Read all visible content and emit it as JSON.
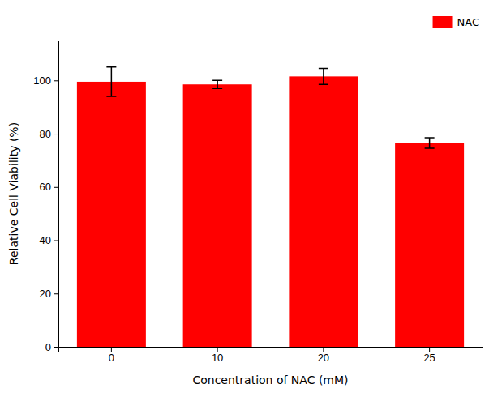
{
  "chart_data": {
    "type": "bar",
    "xlabel": "Concentration of NAC (mM)",
    "ylabel": "Relative Cell Viability (%)",
    "categories": [
      "0",
      "10",
      "20",
      "25"
    ],
    "series": [
      {
        "name": "NAC",
        "color": "#FF0000",
        "values": [
          99.5,
          98.5,
          101.5,
          76.5
        ],
        "errors": [
          5.5,
          1.5,
          3.0,
          2.0
        ]
      }
    ],
    "ylim": [
      0,
      115
    ],
    "yticks": [
      0,
      20,
      40,
      60,
      80,
      100
    ],
    "legend": "upper right",
    "grid": false
  }
}
